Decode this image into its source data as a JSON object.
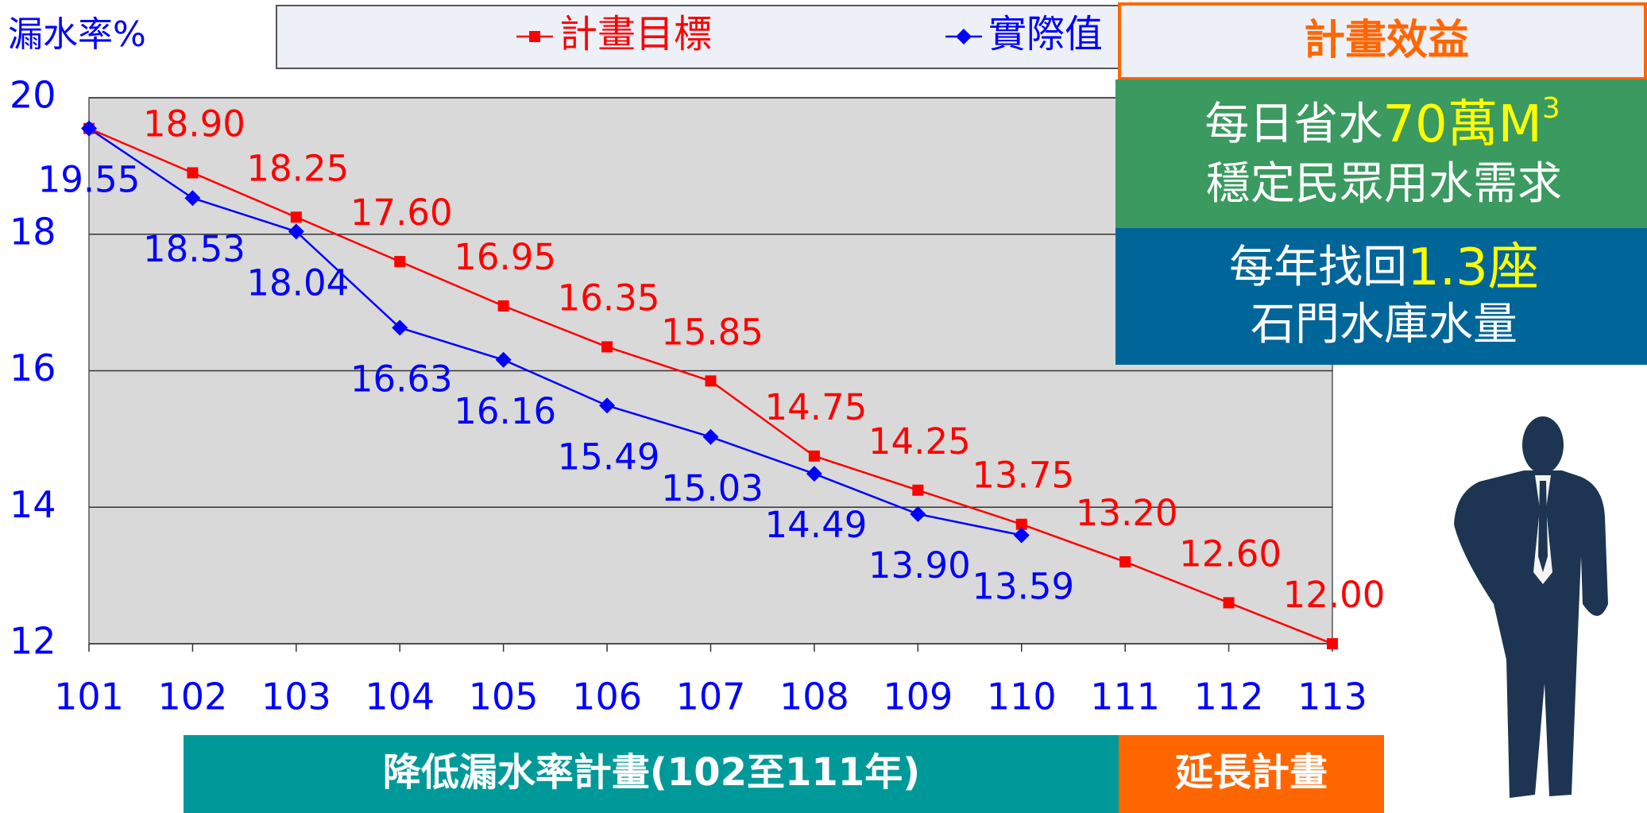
{
  "chart_data": {
    "type": "line",
    "y_label": "漏水率%",
    "categories": [
      "101",
      "102",
      "103",
      "104",
      "105",
      "106",
      "107",
      "108",
      "109",
      "110",
      "111",
      "112",
      "113"
    ],
    "series": [
      {
        "name": "計畫目標",
        "color": "#ff0000",
        "marker": "square",
        "values": [
          19.55,
          18.9,
          18.25,
          17.6,
          16.95,
          16.35,
          15.85,
          14.75,
          14.25,
          13.75,
          13.2,
          12.6,
          12.0
        ],
        "value_labels": [
          null,
          "18.90",
          "18.25",
          "17.60",
          "16.95",
          "16.35",
          "15.85",
          "14.75",
          "14.25",
          "13.75",
          "13.20",
          "12.60",
          "12.00"
        ]
      },
      {
        "name": "實際值",
        "color": "#0000ff",
        "marker": "diamond",
        "values": [
          19.55,
          18.53,
          18.04,
          16.63,
          16.16,
          15.49,
          15.03,
          14.49,
          13.9,
          13.59,
          null,
          null,
          null
        ],
        "value_labels": [
          "19.55",
          "18.53",
          "18.04",
          "16.63",
          "16.16",
          "15.49",
          "15.03",
          "14.49",
          "13.90",
          "13.59",
          null,
          null,
          null
        ]
      }
    ],
    "ylim": [
      12,
      20
    ],
    "yticks": [
      12,
      14,
      16,
      18,
      20
    ],
    "grid": true
  },
  "benefits": {
    "title": "計畫效益",
    "line1_prefix": "每日省水",
    "line1_highlight": "70萬M",
    "line1_sup": "3",
    "line2": "穩定民眾用水需求",
    "line3_prefix": "每年找回",
    "line3_highlight": "1.3座",
    "line4": "石門水庫水量"
  },
  "phases": {
    "main": "降低漏水率計畫(102至111年)",
    "extension": "延長計畫"
  }
}
